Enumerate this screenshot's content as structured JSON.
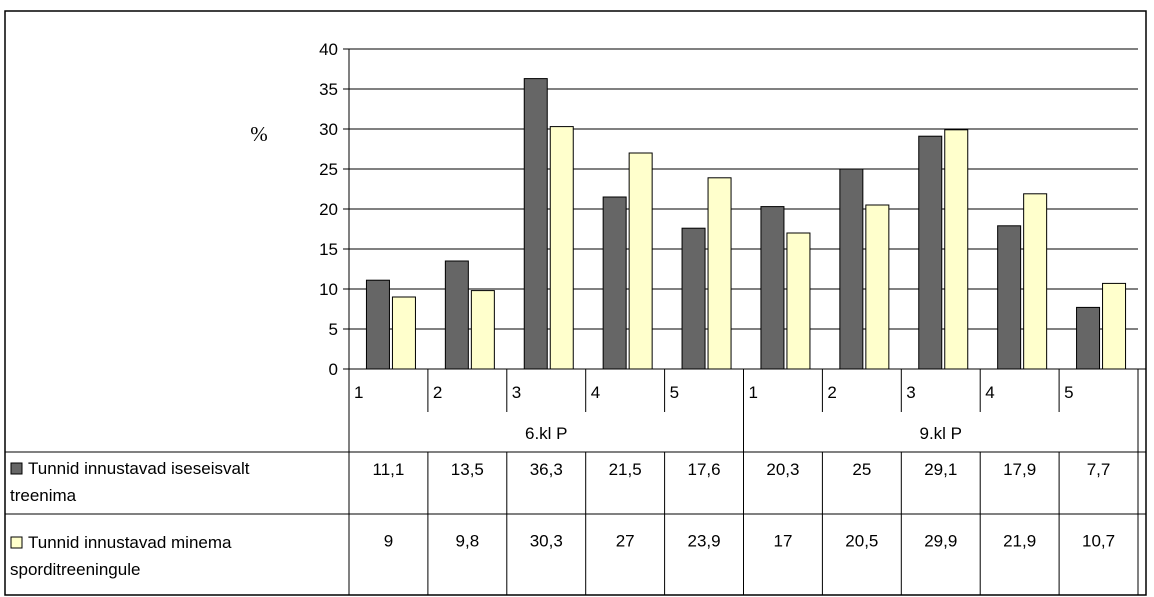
{
  "chart_data": {
    "type": "bar",
    "ylabel": "%",
    "ylim": [
      0,
      40
    ],
    "yticks": [
      "0",
      "5",
      "10",
      "15",
      "20",
      "25",
      "30",
      "35",
      "40"
    ],
    "grid": true,
    "categories": [
      "1",
      "2",
      "3",
      "4",
      "5",
      "1",
      "2",
      "3",
      "4",
      "5"
    ],
    "groups": [
      {
        "label": "6.kl P",
        "count": 5
      },
      {
        "label": "9.kl P",
        "count": 5
      }
    ],
    "series": [
      {
        "name": "Tunnid innustavad iseseisvalt treenima",
        "color": "#666666",
        "values": [
          11.1,
          13.5,
          36.3,
          21.5,
          17.6,
          20.3,
          25,
          29.1,
          17.9,
          7.7
        ],
        "labels": [
          "11,1",
          "13,5",
          "36,3",
          "21,5",
          "17,6",
          "20,3",
          "25",
          "29,1",
          "17,9",
          "7,7"
        ]
      },
      {
        "name": "Tunnid innustavad minema sporditreeningule",
        "color": "#FFFFCC",
        "values": [
          9,
          9.8,
          30.3,
          27,
          23.9,
          17,
          20.5,
          29.9,
          21.9,
          10.7
        ],
        "labels": [
          "9",
          "9,8",
          "30,3",
          "27",
          "23,9",
          "17",
          "20,5",
          "29,9",
          "21,9",
          "10,7"
        ]
      }
    ]
  }
}
